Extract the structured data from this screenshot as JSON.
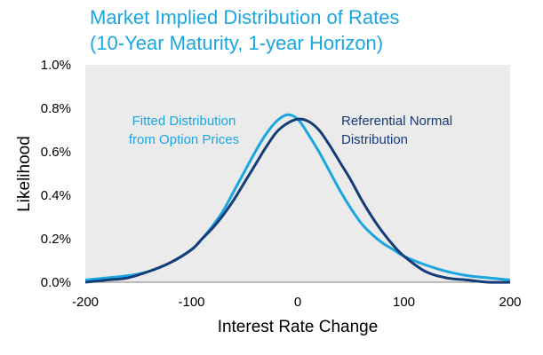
{
  "chart_data": {
    "type": "line",
    "title": [
      "Market Implied Distribution of Rates",
      "(10-Year Maturity, 1-year Horizon)"
    ],
    "xlabel": "Interest Rate Change",
    "ylabel": "Likelihood",
    "xlim": [
      -200,
      200
    ],
    "ylim": [
      0,
      1.0
    ],
    "x_ticks": [
      "-200",
      "-100",
      "0",
      "100",
      "200"
    ],
    "y_ticks": [
      "0.0%",
      "0.2%",
      "0.4%",
      "0.6%",
      "0.8%",
      "1.0%"
    ],
    "grid": false,
    "plot_background": "#ebebeb",
    "annotations": [
      {
        "lines": [
          "Fitted Distribution",
          "from Option Prices"
        ],
        "color": "#1aa6e0"
      },
      {
        "lines": [
          "Referential Normal",
          "Distribution"
        ],
        "color": "#143c78"
      }
    ],
    "series": [
      {
        "color": "#1aa6e0",
        "points": [
          [
            -200,
            0.01
          ],
          [
            -180,
            0.02
          ],
          [
            -160,
            0.03
          ],
          [
            -140,
            0.05
          ],
          [
            -120,
            0.09
          ],
          [
            -100,
            0.15
          ],
          [
            -90,
            0.2
          ],
          [
            -80,
            0.26
          ],
          [
            -70,
            0.33
          ],
          [
            -60,
            0.42
          ],
          [
            -50,
            0.51
          ],
          [
            -40,
            0.6
          ],
          [
            -30,
            0.68
          ],
          [
            -20,
            0.74
          ],
          [
            -10,
            0.77
          ],
          [
            0,
            0.75
          ],
          [
            10,
            0.68
          ],
          [
            20,
            0.6
          ],
          [
            30,
            0.51
          ],
          [
            40,
            0.42
          ],
          [
            50,
            0.34
          ],
          [
            60,
            0.27
          ],
          [
            70,
            0.22
          ],
          [
            80,
            0.18
          ],
          [
            90,
            0.15
          ],
          [
            100,
            0.12
          ],
          [
            120,
            0.08
          ],
          [
            140,
            0.05
          ],
          [
            160,
            0.03
          ],
          [
            180,
            0.02
          ],
          [
            200,
            0.01
          ]
        ]
      },
      {
        "color": "#143c78",
        "points": [
          [
            -200,
            0.0
          ],
          [
            -180,
            0.01
          ],
          [
            -160,
            0.02
          ],
          [
            -140,
            0.05
          ],
          [
            -120,
            0.09
          ],
          [
            -100,
            0.15
          ],
          [
            -90,
            0.2
          ],
          [
            -80,
            0.25
          ],
          [
            -70,
            0.31
          ],
          [
            -60,
            0.38
          ],
          [
            -50,
            0.46
          ],
          [
            -40,
            0.54
          ],
          [
            -30,
            0.62
          ],
          [
            -20,
            0.69
          ],
          [
            -10,
            0.73
          ],
          [
            0,
            0.75
          ],
          [
            10,
            0.74
          ],
          [
            20,
            0.7
          ],
          [
            30,
            0.63
          ],
          [
            40,
            0.55
          ],
          [
            50,
            0.47
          ],
          [
            60,
            0.38
          ],
          [
            70,
            0.3
          ],
          [
            80,
            0.23
          ],
          [
            90,
            0.17
          ],
          [
            100,
            0.12
          ],
          [
            120,
            0.05
          ],
          [
            140,
            0.02
          ],
          [
            160,
            0.01
          ],
          [
            180,
            0.0
          ],
          [
            200,
            0.0
          ]
        ]
      }
    ]
  }
}
